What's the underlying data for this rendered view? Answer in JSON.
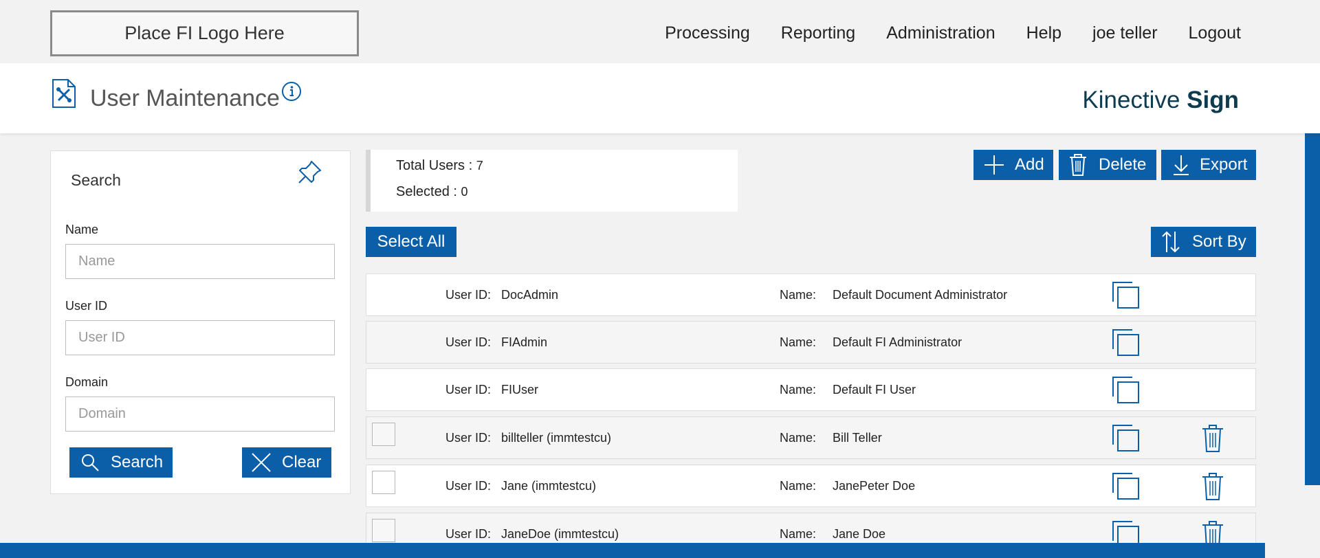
{
  "logo_placeholder": "Place FI Logo Here",
  "nav": [
    "Processing",
    "Reporting",
    "Administration",
    "Help",
    "joe teller",
    "Logout"
  ],
  "page_title": "User Maintenance",
  "brand": {
    "light": "Kinective",
    "bold": "Sign"
  },
  "search": {
    "title": "Search",
    "name_label": "Name",
    "name_placeholder": "Name",
    "userid_label": "User ID",
    "userid_placeholder": "User ID",
    "domain_label": "Domain",
    "domain_placeholder": "Domain",
    "search_button": "Search",
    "clear_button": "Clear"
  },
  "summary": {
    "total_label": "Total Users : ",
    "total_value": "7",
    "selected_label": "Selected : ",
    "selected_value": "0"
  },
  "toolbar": {
    "add": "Add",
    "delete": "Delete",
    "export": "Export",
    "select_all": "Select All",
    "sort_by": "Sort By"
  },
  "row_labels": {
    "user_id": "User ID:",
    "name": "Name:"
  },
  "users": [
    {
      "user_id": "DocAdmin",
      "name": "Default Document Administrator"
    },
    {
      "user_id": "FIAdmin",
      "name": "Default FI Administrator"
    },
    {
      "user_id": "FIUser",
      "name": "Default FI User"
    },
    {
      "user_id": "billteller (immtestcu)",
      "name": "Bill Teller"
    },
    {
      "user_id": "Jane (immtestcu)",
      "name": "JanePeter Doe"
    },
    {
      "user_id": "JaneDoe (immtestcu)",
      "name": "Jane Doe"
    }
  ],
  "colors": {
    "primary": "#0a5fa8",
    "brand": "#0d3b4f"
  }
}
